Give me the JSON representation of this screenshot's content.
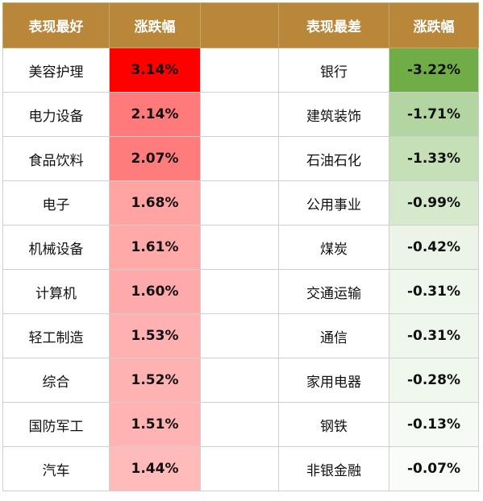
{
  "headers": {
    "best": "表现最好",
    "best_change": "涨跌幅",
    "worst": "表现最差",
    "worst_change": "涨跌幅"
  },
  "rows": [
    {
      "best": "美容护理",
      "best_change": "3.14%",
      "best_color": "#ff0000",
      "worst": "银行",
      "worst_change": "-3.22%",
      "worst_color": "#70ad47"
    },
    {
      "best": "电力设备",
      "best_change": "2.14%",
      "best_color": "#ff7a7a",
      "worst": "建筑装饰",
      "worst_change": "-1.71%",
      "worst_color": "#b3d5a2"
    },
    {
      "best": "食品饮料",
      "best_change": "2.07%",
      "best_color": "#ff7c7c",
      "worst": "石油石化",
      "worst_change": "-1.33%",
      "worst_color": "#c5e0b7"
    },
    {
      "best": "电子",
      "best_change": "1.68%",
      "best_color": "#ffa3a3",
      "worst": "公用事业",
      "worst_change": "-0.99%",
      "worst_color": "#d6e9cd"
    },
    {
      "best": "机械设备",
      "best_change": "1.61%",
      "best_color": "#ffa9a9",
      "worst": "煤炭",
      "worst_change": "-0.42%",
      "worst_color": "#ebf4e6"
    },
    {
      "best": "计算机",
      "best_change": "1.60%",
      "best_color": "#ffaaaa",
      "worst": "交通运输",
      "worst_change": "-0.31%",
      "worst_color": "#eff6eb"
    },
    {
      "best": "轻工制造",
      "best_change": "1.53%",
      "best_color": "#ffb1b1",
      "worst": "通信",
      "worst_change": "-0.31%",
      "worst_color": "#eff6eb"
    },
    {
      "best": "综合",
      "best_change": "1.52%",
      "best_color": "#ffb2b2",
      "worst": "家用电器",
      "worst_change": "-0.28%",
      "worst_color": "#f0f7ec"
    },
    {
      "best": "国防军工",
      "best_change": "1.51%",
      "best_color": "#ffb3b3",
      "worst": "钢铁",
      "worst_change": "-0.13%",
      "worst_color": "#f6faf4"
    },
    {
      "best": "汽车",
      "best_change": "1.44%",
      "best_color": "#ffbaba",
      "worst": "非银金融",
      "worst_change": "-0.07%",
      "worst_color": "#f9fcf8"
    }
  ]
}
